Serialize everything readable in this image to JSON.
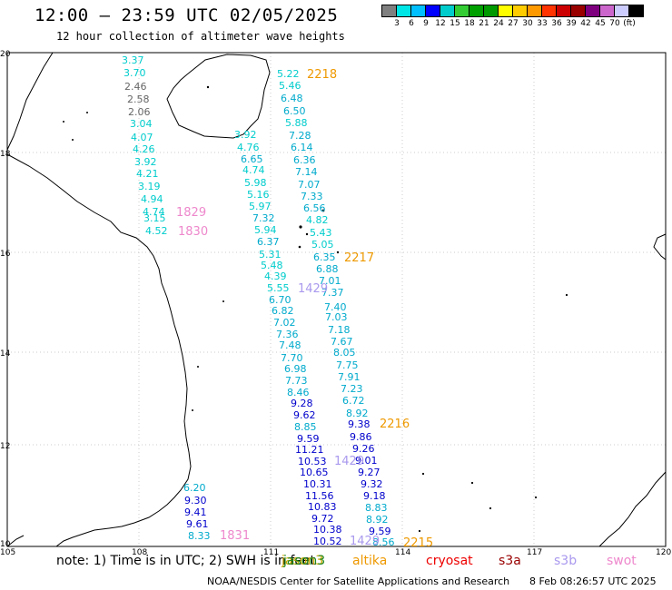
{
  "header": {
    "title": "12:00 – 23:59 UTC 02/05/2025",
    "subtitle": "12 hour collection of altimeter wave heights"
  },
  "colorbar": {
    "colors": [
      "#7f7f7f",
      "#00e5e5",
      "#00bfff",
      "#0000ff",
      "#00cccc",
      "#33cc33",
      "#00a000",
      "#009900",
      "#ffff00",
      "#ffcc00",
      "#ff9900",
      "#ff3300",
      "#cc0000",
      "#990000",
      "#7f007f",
      "#cc66cc",
      "#ccccff",
      "#000000"
    ],
    "labels": [
      "3",
      "6",
      "9",
      "12",
      "15",
      "18",
      "21",
      "24",
      "27",
      "30",
      "33",
      "36",
      "39",
      "42",
      "45",
      "70",
      "(ft)"
    ]
  },
  "axes": {
    "x_ticks": [
      "105",
      "108",
      "111",
      "114",
      "117",
      "120"
    ],
    "y_ticks": [
      "20",
      "18",
      "16",
      "14",
      "12",
      "10"
    ]
  },
  "observations": [
    {
      "t": "3.37",
      "c": "#00cccc"
    },
    {
      "t": "3.70",
      "c": "#00cccc"
    },
    {
      "t": "2.46",
      "c": "#666666"
    },
    {
      "t": "2.58",
      "c": "#666666"
    },
    {
      "t": "2.06",
      "c": "#666666"
    },
    {
      "t": "3.04",
      "c": "#00cccc"
    },
    {
      "t": "4.07",
      "c": "#00cccc"
    },
    {
      "t": "4.26",
      "c": "#00cccc"
    },
    {
      "t": "3.92",
      "c": "#00cccc"
    },
    {
      "t": "4.21",
      "c": "#00cccc"
    },
    {
      "t": "3.19",
      "c": "#00cccc"
    },
    {
      "t": "4.94",
      "c": "#00cccc"
    },
    {
      "t": "4.74",
      "c": "#00cccc"
    },
    {
      "t": "3.15",
      "c": "#00cccc"
    },
    {
      "t": "4.52",
      "c": "#00cccc"
    },
    {
      "t": "5.22",
      "c": "#00cccc"
    },
    {
      "t": "5.46",
      "c": "#00cccc"
    },
    {
      "t": "6.48",
      "c": "#00aacc"
    },
    {
      "t": "6.50",
      "c": "#00aacc"
    },
    {
      "t": "5.88",
      "c": "#00cccc"
    },
    {
      "t": "7.28",
      "c": "#00aacc"
    },
    {
      "t": "6.14",
      "c": "#00aacc"
    },
    {
      "t": "6.36",
      "c": "#00aacc"
    },
    {
      "t": "7.14",
      "c": "#00aacc"
    },
    {
      "t": "7.07",
      "c": "#00aacc"
    },
    {
      "t": "7.33",
      "c": "#00aacc"
    },
    {
      "t": "6.56",
      "c": "#00aacc"
    },
    {
      "t": "4.82",
      "c": "#00cccc"
    },
    {
      "t": "5.43",
      "c": "#00cccc"
    },
    {
      "t": "5.05",
      "c": "#00cccc"
    },
    {
      "t": "6.35",
      "c": "#00aacc"
    },
    {
      "t": "6.88",
      "c": "#00aacc"
    },
    {
      "t": "7.01",
      "c": "#00aacc"
    },
    {
      "t": "7.37",
      "c": "#00aacc"
    },
    {
      "t": "7.40",
      "c": "#00aacc"
    },
    {
      "t": "7.03",
      "c": "#00aacc"
    },
    {
      "t": "7.18",
      "c": "#00aacc"
    },
    {
      "t": "7.67",
      "c": "#00aacc"
    },
    {
      "t": "8.05",
      "c": "#00aacc"
    },
    {
      "t": "7.75",
      "c": "#00aacc"
    },
    {
      "t": "7.91",
      "c": "#00aacc"
    },
    {
      "t": "7.23",
      "c": "#00aacc"
    },
    {
      "t": "6.72",
      "c": "#00aacc"
    },
    {
      "t": "8.92",
      "c": "#00aacc"
    },
    {
      "t": "9.38",
      "c": "#0000cc"
    },
    {
      "t": "9.86",
      "c": "#0000cc"
    },
    {
      "t": "9.26",
      "c": "#0000cc"
    },
    {
      "t": "9.01",
      "c": "#0000cc"
    },
    {
      "t": "9.27",
      "c": "#0000cc"
    },
    {
      "t": "9.32",
      "c": "#0000cc"
    },
    {
      "t": "9.18",
      "c": "#0000cc"
    },
    {
      "t": "8.83",
      "c": "#00aacc"
    },
    {
      "t": "8.92",
      "c": "#00aacc"
    },
    {
      "t": "9.59",
      "c": "#0000cc"
    },
    {
      "t": "8.56",
      "c": "#00aacc"
    },
    {
      "t": "3.92",
      "c": "#00cccc"
    },
    {
      "t": "4.76",
      "c": "#00cccc"
    },
    {
      "t": "6.65",
      "c": "#00aacc"
    },
    {
      "t": "4.74",
      "c": "#00cccc"
    },
    {
      "t": "5.98",
      "c": "#00cccc"
    },
    {
      "t": "5.16",
      "c": "#00cccc"
    },
    {
      "t": "5.97",
      "c": "#00cccc"
    },
    {
      "t": "7.32",
      "c": "#00aacc"
    },
    {
      "t": "5.94",
      "c": "#00cccc"
    },
    {
      "t": "6.37",
      "c": "#00aacc"
    },
    {
      "t": "5.31",
      "c": "#00cccc"
    },
    {
      "t": "5.48",
      "c": "#00cccc"
    },
    {
      "t": "4.39",
      "c": "#00cccc"
    },
    {
      "t": "5.55",
      "c": "#00cccc"
    },
    {
      "t": "6.70",
      "c": "#00aacc"
    },
    {
      "t": "6.82",
      "c": "#00aacc"
    },
    {
      "t": "7.02",
      "c": "#00aacc"
    },
    {
      "t": "7.36",
      "c": "#00aacc"
    },
    {
      "t": "7.48",
      "c": "#00aacc"
    },
    {
      "t": "7.70",
      "c": "#00aacc"
    },
    {
      "t": "6.98",
      "c": "#00aacc"
    },
    {
      "t": "7.73",
      "c": "#00aacc"
    },
    {
      "t": "8.46",
      "c": "#00aacc"
    },
    {
      "t": "9.28",
      "c": "#0000cc"
    },
    {
      "t": "9.62",
      "c": "#0000cc"
    },
    {
      "t": "8.85",
      "c": "#00aacc"
    },
    {
      "t": "9.59",
      "c": "#0000cc"
    },
    {
      "t": "11.21",
      "c": "#0000cc"
    },
    {
      "t": "10.53",
      "c": "#0000cc"
    },
    {
      "t": "10.65",
      "c": "#0000cc"
    },
    {
      "t": "10.31",
      "c": "#0000cc"
    },
    {
      "t": "11.56",
      "c": "#0000cc"
    },
    {
      "t": "10.83",
      "c": "#0000cc"
    },
    {
      "t": "9.72",
      "c": "#0000cc"
    },
    {
      "t": "10.38",
      "c": "#0000cc"
    },
    {
      "t": "10.52",
      "c": "#0000cc"
    },
    {
      "t": "6.20",
      "c": "#00aacc"
    },
    {
      "t": "9.30",
      "c": "#0000cc"
    },
    {
      "t": "9.41",
      "c": "#0000cc"
    },
    {
      "t": "9.61",
      "c": "#0000cc"
    },
    {
      "t": "8.33",
      "c": "#00aacc"
    }
  ],
  "track_labels": [
    {
      "t": "2218",
      "c": "#ee9900"
    },
    {
      "t": "2217",
      "c": "#ee9900"
    },
    {
      "t": "2216",
      "c": "#ee9900"
    },
    {
      "t": "2215",
      "c": "#ee9900"
    },
    {
      "t": "1829",
      "c": "#ee88cc"
    },
    {
      "t": "1830",
      "c": "#ee88cc"
    },
    {
      "t": "1831",
      "c": "#ee88cc"
    },
    {
      "t": "1429",
      "c": "#aa99ee"
    },
    {
      "t": "1429",
      "c": "#aa99ee"
    },
    {
      "t": "1429",
      "c": "#aa99ee"
    }
  ],
  "footer": {
    "note": "note:  1) Time is in UTC; 2) SWH is in feet",
    "satellites": [
      {
        "name": "jason3",
        "color": "#ccaa00"
      },
      {
        "name": "altika",
        "color": "#ee9900"
      },
      {
        "name": "cryosat",
        "color": "#ee0000"
      },
      {
        "name": "s3a",
        "color": "#990000"
      },
      {
        "name": "s3b",
        "color": "#aa99ee"
      },
      {
        "name": "swot",
        "color": "#ee88cc"
      }
    ],
    "overlay_satellite": {
      "name": "jason3",
      "color": "#228822"
    },
    "credit": "NOAA/NESDIS Center for Satellite Applications and Research",
    "timestamp": "8 Feb 08:26:57 UTC 2025"
  }
}
